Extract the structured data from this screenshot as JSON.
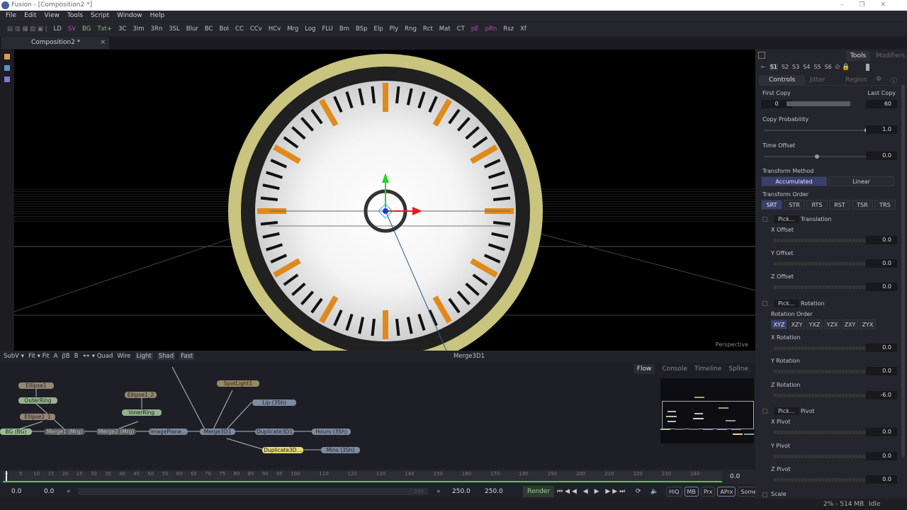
{
  "window": {
    "title": "Fusion - [Composition2 *]",
    "controls": [
      "–",
      "❐",
      "✕"
    ]
  },
  "menu": [
    "File",
    "Edit",
    "View",
    "Tools",
    "Script",
    "Window",
    "Help"
  ],
  "toolbar": [
    {
      "t": "LD"
    },
    {
      "t": "SV",
      "c": "purple"
    },
    {
      "t": "BG",
      "c": "green"
    },
    {
      "t": "Txt+",
      "c": "green"
    },
    {
      "t": "3C"
    },
    {
      "t": "3Im"
    },
    {
      "t": "3Rn"
    },
    {
      "t": "3SL"
    },
    {
      "t": "Blur"
    },
    {
      "t": "BC"
    },
    {
      "t": "BoI"
    },
    {
      "t": "CC"
    },
    {
      "t": "CCv"
    },
    {
      "t": "HCv"
    },
    {
      "t": "Mrg"
    },
    {
      "t": "Log"
    },
    {
      "t": "FLU"
    },
    {
      "t": "Bm"
    },
    {
      "t": "BSp"
    },
    {
      "t": "Elp"
    },
    {
      "t": "Ply"
    },
    {
      "t": "Rng"
    },
    {
      "t": "Rct"
    },
    {
      "t": "Mat"
    },
    {
      "t": "CT"
    },
    {
      "t": "pE",
      "c": "purple"
    },
    {
      "t": "pRn",
      "c": "purple"
    },
    {
      "t": "Rsz"
    },
    {
      "t": "Xf"
    }
  ],
  "comp_tab": {
    "label": "Composition2 *",
    "close": "×"
  },
  "viewport": {
    "label": "Perspective",
    "clock_colors": {
      "ring": "#c9c47e",
      "bezel": "#202020",
      "face": "#ffffff",
      "hour_tick": "#e08a1c",
      "minute_tick": "#111111"
    }
  },
  "viewer_bar": {
    "items": [
      "SubV ▾",
      "Fit ▾ Fit",
      "A",
      "ꞵB",
      "B",
      "👓 ▾ Quad",
      "Wire"
    ],
    "toggles": [
      "Light",
      "Shad",
      "Fast"
    ],
    "title": "Merge3D1"
  },
  "flow": {
    "tabs": [
      "Flow",
      "Console",
      "Timeline",
      "Spline"
    ],
    "nodes": [
      {
        "id": "Ellipse1",
        "cls": "n-tan"
      },
      {
        "id": "OuterRing",
        "cls": "n-green"
      },
      {
        "id": "Ellipse1_1",
        "cls": "n-tan"
      },
      {
        "id": "BG (BG)",
        "cls": "n-lgreen"
      },
      {
        "id": "Merge1 (Mrg)",
        "cls": "n-gray"
      },
      {
        "id": "Ellipse1_2",
        "cls": "n-tan"
      },
      {
        "id": "InnerRing",
        "cls": "n-green"
      },
      {
        "id": "Merge2 (Mrg)",
        "cls": "n-gray"
      },
      {
        "id": "ImagePlane...",
        "cls": "n-blue"
      },
      {
        "id": "SpotLight1",
        "cls": "n-gold"
      },
      {
        "id": "Lip (3Sh)",
        "cls": "n-blue"
      },
      {
        "id": "Merge3D1",
        "cls": "n-blue"
      },
      {
        "id": "Duplicate3D1",
        "cls": "n-blue"
      },
      {
        "id": "Hours (3Sh)",
        "cls": "n-blue"
      },
      {
        "id": "Duplicate3D...",
        "cls": "n-yellow"
      },
      {
        "id": "Mins (3Sh)",
        "cls": "n-blue"
      }
    ]
  },
  "timeline": {
    "ticks": [
      "0",
      "5",
      "10",
      "15",
      "20",
      "25",
      "30",
      "35",
      "40",
      "45",
      "50",
      "55",
      "60",
      "65",
      "70",
      "75",
      "80",
      "85",
      "90",
      "95",
      "100",
      "110",
      "120",
      "130",
      "140",
      "150",
      "160",
      "170",
      "180",
      "190",
      "200",
      "210",
      "220",
      "230",
      "240"
    ],
    "current": "0.0",
    "start": "0.0",
    "render_start": "0.0",
    "end": "250.0",
    "render_end": "250.0",
    "scroll_end": "250"
  },
  "transport": {
    "render": "Render",
    "buttons": [
      "HiQ",
      "MB",
      "Prx",
      "APrx",
      "Some"
    ]
  },
  "status": {
    "memory": "2% - 514 MB",
    "state": "Idle"
  },
  "panel": {
    "tabs": [
      "Tools",
      "Modifiers"
    ],
    "slots": [
      "S1",
      "S2",
      "S3",
      "S4",
      "S5",
      "S6"
    ],
    "subtabs": [
      "Controls",
      "Jitter",
      "Region"
    ],
    "first_copy": {
      "label": "First Copy",
      "value": "0"
    },
    "last_copy": {
      "label": "Last Copy",
      "value": "60"
    },
    "copy_probability": {
      "label": "Copy Probability",
      "value": "1.0",
      "level": 1.0
    },
    "time_offset": {
      "label": "Time Offset",
      "value": "0.0"
    },
    "transform_method": {
      "label": "Transform Method",
      "options": [
        "Accumulated",
        "Linear"
      ],
      "selected": "Accumulated"
    },
    "transform_order": {
      "label": "Transform Order",
      "options": [
        "SRT",
        "STR",
        "RTS",
        "RST",
        "TSR",
        "TRS"
      ],
      "selected": "SRT"
    },
    "pick": "Pick...",
    "translation": {
      "label": "Translation",
      "x": {
        "label": "X Offset",
        "value": "0.0"
      },
      "y": {
        "label": "Y Offset",
        "value": "0.0"
      },
      "z": {
        "label": "Z Offset",
        "value": "0.0"
      }
    },
    "rotation": {
      "label": "Rotation",
      "order_label": "Rotation Order",
      "orders": [
        "XYZ",
        "XZY",
        "YXZ",
        "YZX",
        "ZXY",
        "ZYX"
      ],
      "x": {
        "label": "X Rotation",
        "value": "0.0"
      },
      "y": {
        "label": "Y Rotation",
        "value": "0.0"
      },
      "z": {
        "label": "Z Rotation",
        "value": "-6.0"
      }
    },
    "pivot": {
      "label": "Pivot",
      "x": {
        "label": "X Pivot",
        "value": "0.0"
      },
      "y": {
        "label": "Y Pivot",
        "value": "0.0"
      },
      "z": {
        "label": "Z Pivot",
        "value": "0.0"
      }
    },
    "scale": {
      "label": "Scale"
    }
  }
}
